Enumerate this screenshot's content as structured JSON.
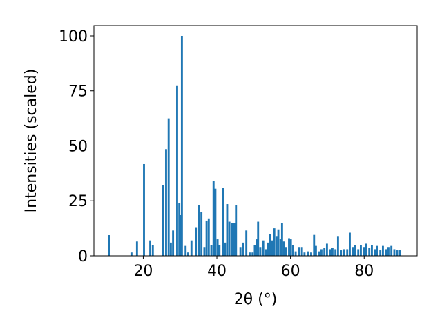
{
  "chart_data": {
    "type": "bar",
    "xlabel": "2θ (°)",
    "ylabel": "Intensities (scaled)",
    "color": "#1f77b4",
    "grid": false,
    "xlim": [
      6.6,
      94.4
    ],
    "ylim": [
      0,
      104.7
    ],
    "xticks": [
      20,
      40,
      60,
      80
    ],
    "yticks": [
      0,
      25,
      50,
      75,
      100
    ],
    "x": [
      10.8,
      16.8,
      18.3,
      20.2,
      21.9,
      22.6,
      25.4,
      26.2,
      26.9,
      27.5,
      28.1,
      29.2,
      29.8,
      30.2,
      30.5,
      31.5,
      32.2,
      33.1,
      34.3,
      35.2,
      35.8,
      36.6,
      37.2,
      37.8,
      38.5,
      39.1,
      39.6,
      40.2,
      40.7,
      41.6,
      42.2,
      42.8,
      43.4,
      44.1,
      44.7,
      45.2,
      46.4,
      47.2,
      48.0,
      48.9,
      49.7,
      50.3,
      50.9,
      51.2,
      51.8,
      52.6,
      53.3,
      53.9,
      54.5,
      55.0,
      55.6,
      56.2,
      56.7,
      57.3,
      57.7,
      58.2,
      58.8,
      59.6,
      60.1,
      60.7,
      61.4,
      62.3,
      63.1,
      63.8,
      64.7,
      65.6,
      66.4,
      66.9,
      67.7,
      68.4,
      69.2,
      69.9,
      70.7,
      71.4,
      72.2,
      72.9,
      73.7,
      74.5,
      75.4,
      76.1,
      76.9,
      77.6,
      78.4,
      79.1,
      79.9,
      80.6,
      81.4,
      82.1,
      82.9,
      83.6,
      84.4,
      85.1,
      85.9,
      86.6,
      87.4,
      88.2,
      88.9,
      89.7
    ],
    "values": [
      9.4,
      1.5,
      6.5,
      41.7,
      7,
      5,
      32,
      48.5,
      62.5,
      6,
      11.5,
      77.5,
      24,
      18.5,
      100,
      4.5,
      1.5,
      7,
      13,
      23,
      20,
      4,
      16,
      17,
      5,
      34,
      30.5,
      7.5,
      5,
      31,
      6,
      23.5,
      15.5,
      15,
      15,
      23,
      4,
      6,
      11.5,
      1.5,
      1.5,
      5,
      7.5,
      15.5,
      4,
      7,
      3,
      6,
      10,
      7,
      12.5,
      9,
      12,
      7.5,
      15,
      6.5,
      4,
      8,
      7.5,
      5,
      2,
      4,
      4,
      1.5,
      2,
      1.5,
      9.5,
      4.5,
      2,
      3,
      3.5,
      5.5,
      3,
      3.5,
      3,
      9,
      2.5,
      3,
      3,
      10.5,
      4,
      5,
      3,
      5,
      4,
      5.5,
      3.5,
      5,
      3,
      4.5,
      2.5,
      4.5,
      3,
      4,
      4.5,
      3,
      2.5,
      2.5
    ]
  }
}
